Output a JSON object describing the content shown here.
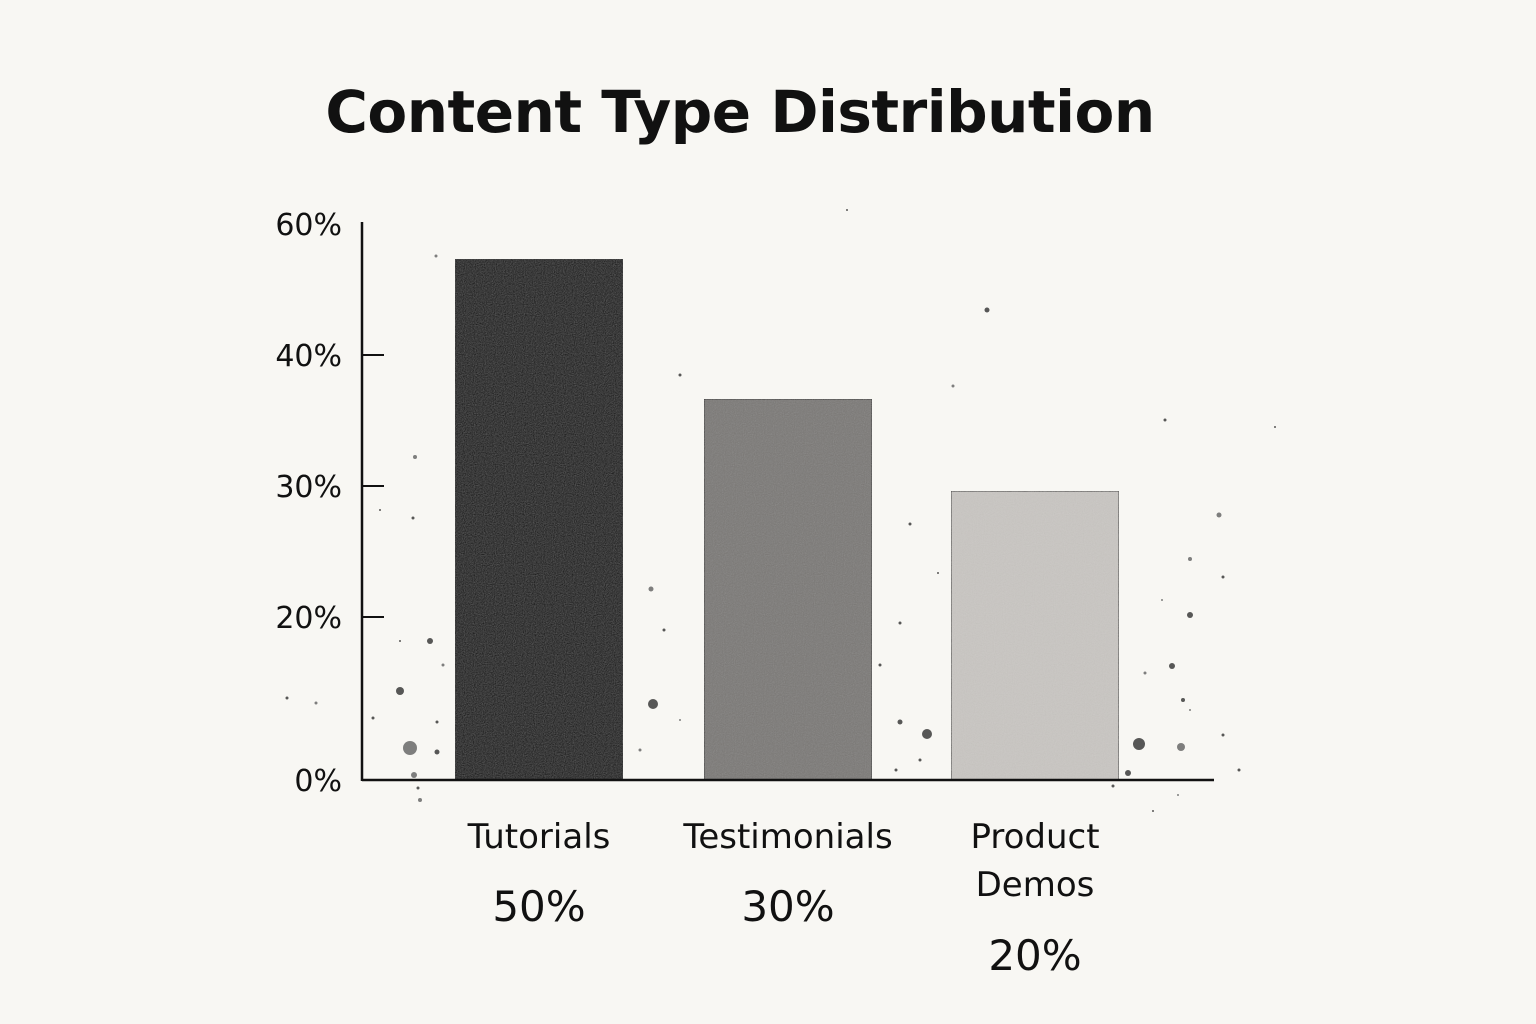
{
  "chart_data": {
    "type": "bar",
    "title": "Content Type Distribution",
    "categories": [
      "Tutorials",
      "Testimonials",
      "Product Demos"
    ],
    "category_lines": [
      [
        "Tutorials"
      ],
      [
        "Testimonials"
      ],
      [
        "Product",
        "Demos"
      ]
    ],
    "values": [
      50,
      30,
      20
    ],
    "value_labels": [
      "50%",
      "30%",
      "20%"
    ],
    "bar_colors": [
      "#0b0b0b",
      "#7a7876",
      "#c9c6c2"
    ],
    "yticks": [
      {
        "value": 0,
        "label": "0%"
      },
      {
        "value": 20,
        "label": "20%"
      },
      {
        "value": 30,
        "label": "30%"
      },
      {
        "value": 40,
        "label": "40%"
      },
      {
        "value": 60,
        "label": "60%"
      }
    ],
    "xlabel": "",
    "ylabel": "",
    "grid": false,
    "legend": "none"
  }
}
